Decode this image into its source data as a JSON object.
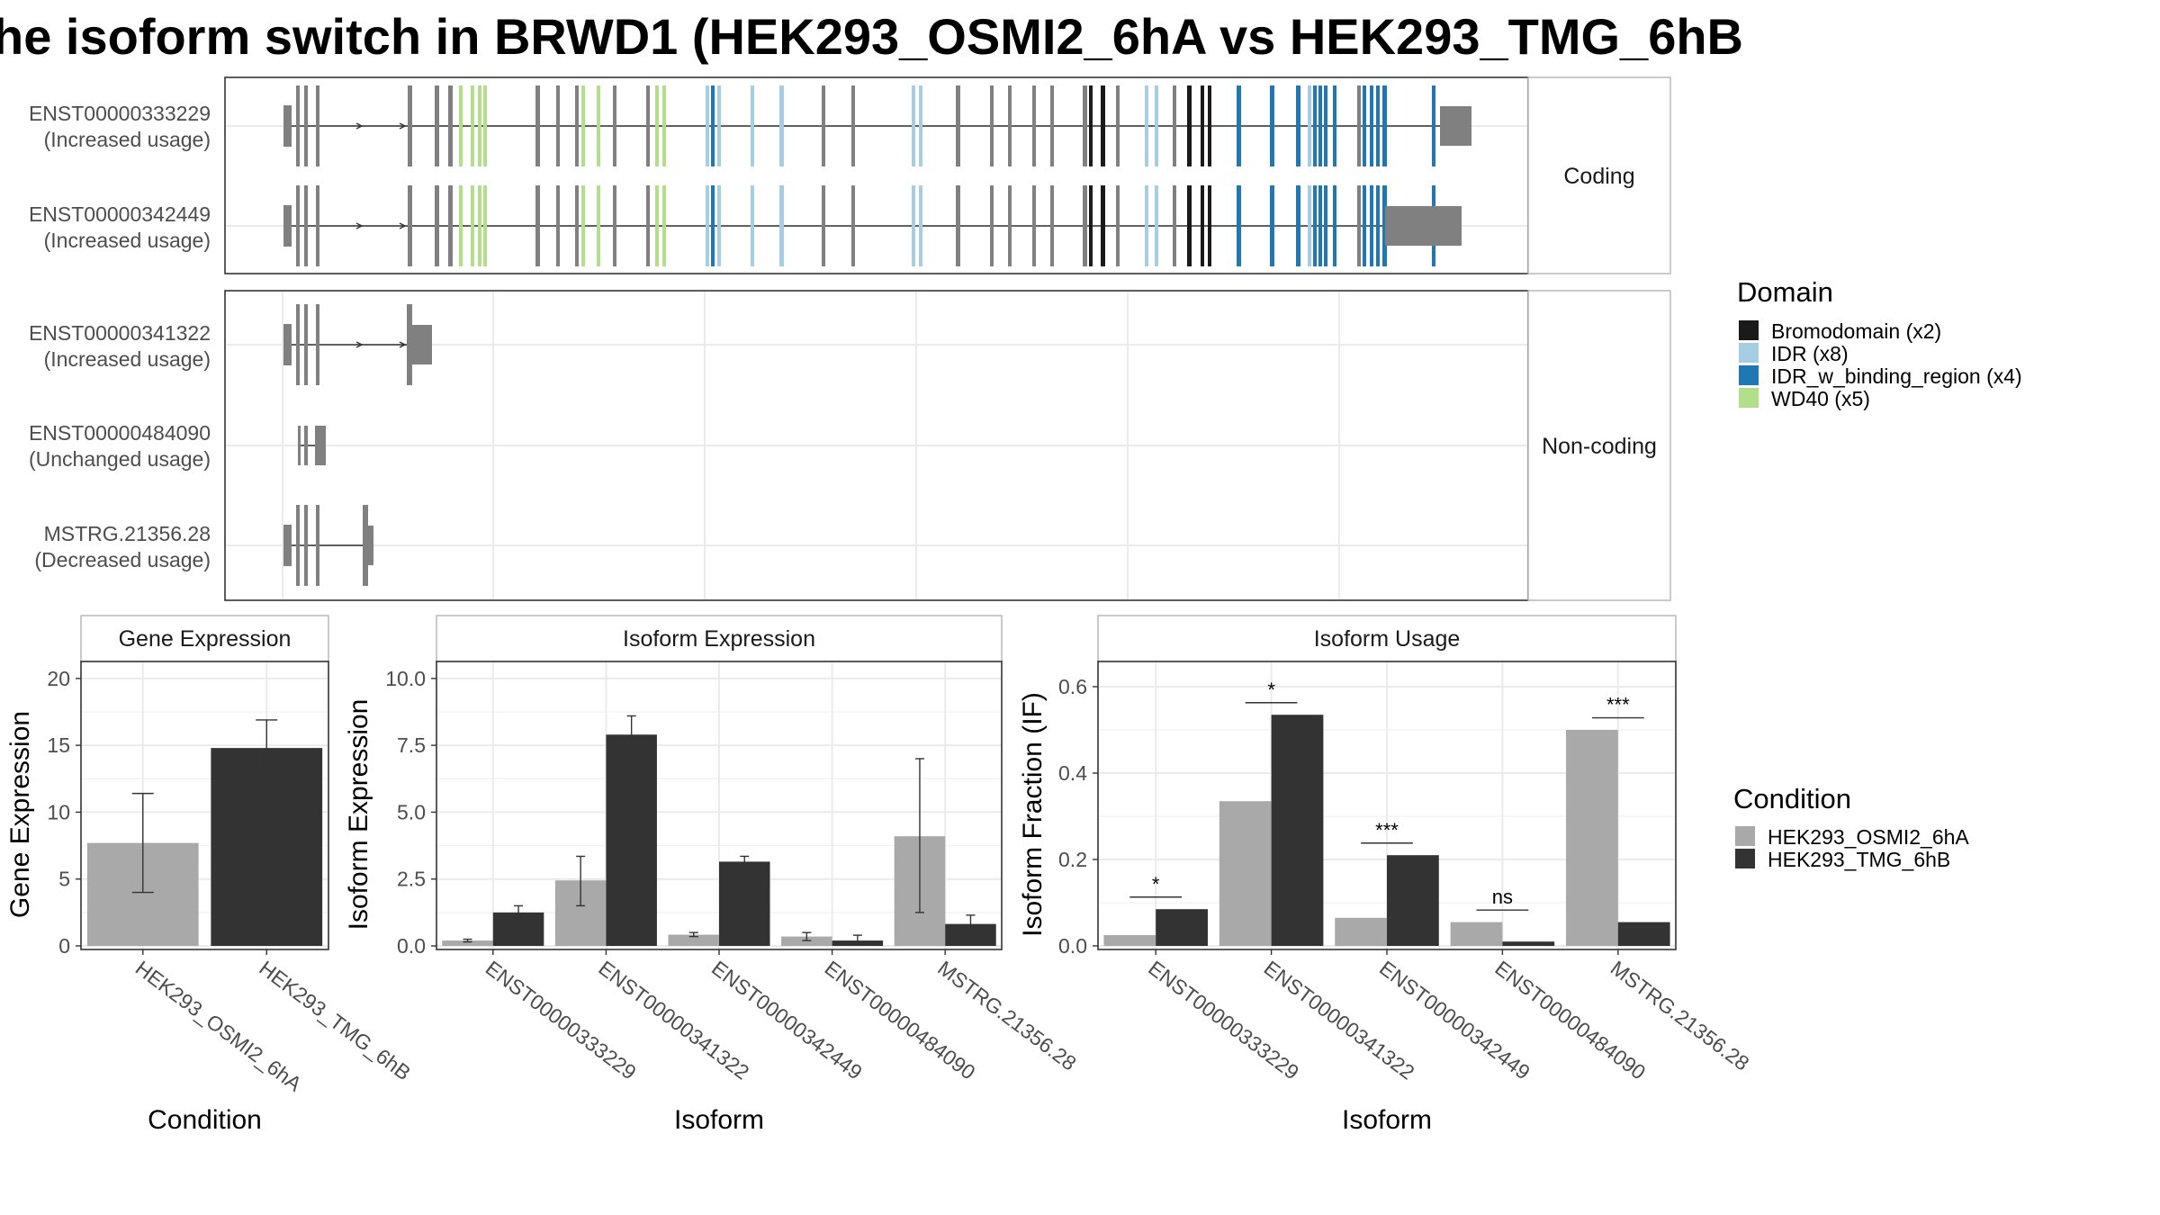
{
  "title": "he isoform switch in BRWD1 (HEK293_OSMI2_6hA vs HEK293_TMG_6hB",
  "transcripts": {
    "coding_label": "Coding",
    "noncoding_label": "Non-coding",
    "coding": [
      {
        "id": "ENST00000333229",
        "usage": "(Increased usage)"
      },
      {
        "id": "ENST00000342449",
        "usage": "(Increased usage)"
      }
    ],
    "noncoding": [
      {
        "id": "ENST00000341322",
        "usage": "(Increased usage)"
      },
      {
        "id": "ENST00000484090",
        "usage": "(Unchanged usage)"
      },
      {
        "id": "MSTRG.21356.28",
        "usage": "(Decreased usage)"
      }
    ]
  },
  "legend_domain": {
    "title": "Domain",
    "items": [
      {
        "label": "Bromodomain (x2)",
        "color": "#1a1a1a"
      },
      {
        "label": "IDR (x8)",
        "color": "#a6cee3"
      },
      {
        "label": "IDR_w_binding_region (x4)",
        "color": "#1f78b4"
      },
      {
        "label": "WD40 (x5)",
        "color": "#b2df8a"
      }
    ]
  },
  "legend_condition": {
    "title": "Condition",
    "items": [
      {
        "label": "HEK293_OSMI2_6hA",
        "color": "#a9a9a9"
      },
      {
        "label": "HEK293_TMG_6hB",
        "color": "#333333"
      }
    ]
  },
  "chart_data": [
    {
      "type": "bar",
      "title": "Gene Expression",
      "xlabel": "Condition",
      "ylabel": "Gene Expression",
      "ylim": [
        0,
        21
      ],
      "yticks": [
        0,
        5,
        10,
        15,
        20
      ],
      "categories": [
        "HEK293_OSMI2_6hA",
        "HEK293_TMG_6hB"
      ],
      "values": [
        7.7,
        14.8
      ],
      "errors": [
        [
          4.0,
          11.4
        ],
        [
          12.8,
          16.9
        ]
      ],
      "colors": [
        "#a9a9a9",
        "#333333"
      ]
    },
    {
      "type": "bar",
      "title": "Isoform Expression",
      "xlabel": "Isoform",
      "ylabel": "Isoform Expression",
      "ylim": [
        0,
        10.5
      ],
      "yticks": [
        "0.0",
        "2.5",
        "5.0",
        "7.5",
        "10.0"
      ],
      "categories": [
        "ENST00000333229",
        "ENST00000341322",
        "ENST00000342449",
        "ENST00000484090",
        "MSTRG.21356.28"
      ],
      "series": [
        {
          "name": "HEK293_OSMI2_6hA",
          "values": [
            0.2,
            2.45,
            0.42,
            0.35,
            4.1
          ],
          "errors": [
            [
              0.15,
              0.25
            ],
            [
              1.5,
              3.35
            ],
            [
              0.35,
              0.5
            ],
            [
              0.2,
              0.5
            ],
            [
              1.25,
              7.0
            ]
          ]
        },
        {
          "name": "HEK293_TMG_6hB",
          "values": [
            1.25,
            7.9,
            3.15,
            0.2,
            0.82
          ],
          "errors": [
            [
              1.0,
              1.5
            ],
            [
              7.25,
              8.6
            ],
            [
              2.95,
              3.35
            ],
            [
              0.05,
              0.4
            ],
            [
              0.55,
              1.15
            ]
          ]
        }
      ]
    },
    {
      "type": "bar",
      "title": "Isoform Usage",
      "xlabel": "Isoform",
      "ylabel": "Isoform Fraction (IF)",
      "ylim": [
        0,
        0.65
      ],
      "yticks": [
        "0.0",
        "0.2",
        "0.4",
        "0.6"
      ],
      "categories": [
        "ENST00000333229",
        "ENST00000341322",
        "ENST00000342449",
        "ENST00000484090",
        "MSTRG.21356.28"
      ],
      "series": [
        {
          "name": "HEK293_OSMI2_6hA",
          "values": [
            0.025,
            0.335,
            0.065,
            0.055,
            0.5
          ]
        },
        {
          "name": "HEK293_TMG_6hB",
          "values": [
            0.085,
            0.535,
            0.21,
            0.01,
            0.055
          ]
        }
      ],
      "significance": [
        "*",
        "*",
        "***",
        "ns",
        "***"
      ]
    }
  ]
}
